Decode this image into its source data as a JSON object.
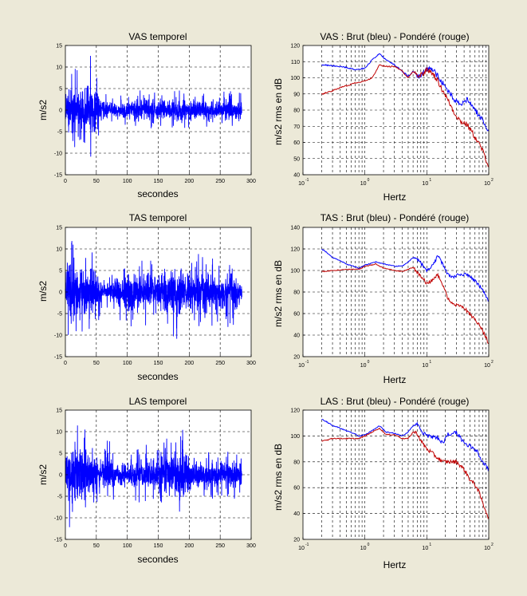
{
  "figure": {
    "background": "#ece9d8",
    "plot_background": "#ffffff",
    "grid_color": "#000000"
  },
  "colors": {
    "brut": "#0000ff",
    "pondere": "#c00000"
  },
  "chart_data": [
    {
      "id": "vas-temporel",
      "type": "line",
      "title": "VAS temporel",
      "xlabel": "secondes",
      "ylabel": "m/s2",
      "xlim": [
        0,
        300
      ],
      "ylim": [
        -15,
        15
      ],
      "xticks": [
        "0",
        "50",
        "100",
        "150",
        "200",
        "250",
        "300"
      ],
      "yticks": [
        "-15",
        "-10",
        "-5",
        "0",
        "5",
        "10",
        "15"
      ],
      "grid": true,
      "series": [
        {
          "color": "#0000ff",
          "x_range": [
            0,
            285
          ],
          "envelope": {
            "x": [
              0,
              10,
              20,
              30,
              40,
              50,
              60,
              80,
              100,
              120,
              150,
              180,
              200,
              220,
              250,
              270,
              285
            ],
            "amplitude": [
              4,
              10,
              11,
              9,
              14,
              8,
              4,
              3,
              4,
              5,
              4,
              5,
              4,
              4,
              4,
              5,
              4
            ]
          }
        }
      ]
    },
    {
      "id": "vas-spectre",
      "type": "line",
      "title": "VAS :  Brut (bleu) - Pondéré (rouge)",
      "xlabel": "Hertz",
      "ylabel": "m/s2 rms en dB",
      "xscale": "log",
      "xlim": [
        0.1,
        100
      ],
      "ylim": [
        40,
        120
      ],
      "xtick_bases": [
        "10",
        "10",
        "10",
        "10"
      ],
      "xtick_exponents": [
        "-1",
        "0",
        "1",
        "2"
      ],
      "yticks": [
        "40",
        "50",
        "60",
        "70",
        "80",
        "90",
        "100",
        "110",
        "120"
      ],
      "grid": true,
      "series": [
        {
          "name": "Brut",
          "color": "#0000ff",
          "x": [
            0.2,
            0.4,
            0.7,
            1.0,
            1.3,
            1.7,
            2.2,
            3.0,
            4.0,
            5.0,
            6.0,
            7.5,
            10,
            13,
            17,
            22,
            28,
            35,
            45,
            60,
            75,
            100
          ],
          "y": [
            108,
            107,
            105,
            106,
            111,
            115,
            111,
            108,
            104,
            101,
            104,
            100,
            106,
            104,
            98,
            92,
            86,
            83,
            87,
            80,
            75,
            67
          ]
        },
        {
          "name": "Pondéré",
          "color": "#c00000",
          "x": [
            0.2,
            0.4,
            0.7,
            1.0,
            1.3,
            1.7,
            2.2,
            3.0,
            4.0,
            5.0,
            6.0,
            7.5,
            10,
            13,
            17,
            22,
            28,
            35,
            45,
            60,
            75,
            100
          ],
          "y": [
            90,
            94,
            97,
            98,
            100,
            108,
            107,
            107,
            104,
            100,
            104,
            101,
            105,
            102,
            94,
            86,
            78,
            73,
            71,
            63,
            57,
            45
          ]
        }
      ]
    },
    {
      "id": "tas-temporel",
      "type": "line",
      "title": "TAS temporel",
      "xlabel": "secondes",
      "ylabel": "m/s2",
      "xlim": [
        0,
        300
      ],
      "ylim": [
        -15,
        15
      ],
      "xticks": [
        "0",
        "50",
        "100",
        "150",
        "200",
        "250",
        "300"
      ],
      "yticks": [
        "-15",
        "-10",
        "-5",
        "0",
        "5",
        "10",
        "15"
      ],
      "grid": true,
      "series": [
        {
          "color": "#0000ff",
          "x_range": [
            0,
            285
          ],
          "envelope": {
            "x": [
              0,
              10,
              20,
              30,
              40,
              50,
              60,
              80,
              90,
              100,
              120,
              150,
              180,
              200,
              220,
              250,
              270,
              285
            ],
            "amplitude": [
              8,
              14,
              9,
              10,
              12,
              9,
              3,
              5,
              7,
              9,
              8,
              8,
              11,
              9,
              9,
              7,
              9,
              5
            ]
          }
        }
      ]
    },
    {
      "id": "tas-spectre",
      "type": "line",
      "title": "TAS :  Brut (bleu) - Pondéré (rouge)",
      "xlabel": "Hertz",
      "ylabel": "m/s2 rms en dB",
      "xscale": "log",
      "xlim": [
        0.1,
        100
      ],
      "ylim": [
        20,
        140
      ],
      "xtick_bases": [
        "10",
        "10",
        "10",
        "10"
      ],
      "xtick_exponents": [
        "-1",
        "0",
        "1",
        "2"
      ],
      "yticks": [
        "20",
        "40",
        "60",
        "80",
        "100",
        "120",
        "140"
      ],
      "grid": true,
      "series": [
        {
          "name": "Brut",
          "color": "#0000ff",
          "x": [
            0.2,
            0.3,
            0.5,
            0.8,
            1.0,
            1.5,
            2.0,
            3.0,
            4.0,
            5.0,
            6.0,
            7.0,
            10,
            13,
            15,
            18,
            22,
            28,
            35,
            45,
            60,
            80,
            100
          ],
          "y": [
            120,
            112,
            106,
            102,
            105,
            108,
            106,
            104,
            104,
            108,
            112,
            110,
            100,
            106,
            114,
            106,
            96,
            94,
            97,
            96,
            90,
            82,
            70
          ]
        },
        {
          "name": "Pondéré",
          "color": "#c00000",
          "x": [
            0.2,
            0.3,
            0.5,
            0.8,
            1.0,
            1.5,
            2.0,
            3.0,
            4.0,
            5.0,
            6.0,
            7.0,
            10,
            13,
            15,
            18,
            22,
            28,
            35,
            45,
            60,
            80,
            100
          ],
          "y": [
            99,
            100,
            101,
            101,
            104,
            106,
            102,
            100,
            99,
            101,
            103,
            98,
            88,
            92,
            96,
            86,
            74,
            68,
            68,
            62,
            54,
            44,
            32
          ]
        }
      ]
    },
    {
      "id": "las-temporel",
      "type": "line",
      "title": "LAS temporel",
      "xlabel": "secondes",
      "ylabel": "m/s2",
      "xlim": [
        0,
        300
      ],
      "ylim": [
        -15,
        15
      ],
      "xticks": [
        "0",
        "50",
        "100",
        "150",
        "200",
        "250",
        "300"
      ],
      "yticks": [
        "-15",
        "-10",
        "-5",
        "0",
        "5",
        "10",
        "15"
      ],
      "grid": true,
      "series": [
        {
          "color": "#0000ff",
          "x_range": [
            0,
            285
          ],
          "envelope": {
            "x": [
              0,
              10,
              20,
              30,
              40,
              50,
              60,
              70,
              80,
              100,
              120,
              150,
              170,
              190,
              200,
              220,
              250,
              270,
              285
            ],
            "amplitude": [
              9,
              14,
              12,
              11,
              9,
              8,
              4,
              10,
              5,
              4,
              7,
              8,
              9,
              12,
              7,
              7,
              5,
              7,
              4
            ]
          }
        }
      ]
    },
    {
      "id": "las-spectre",
      "type": "line",
      "title": "LAS :  Brut (bleu) - Pondéré (rouge)",
      "xlabel": "Hertz",
      "ylabel": "m/s2 rms en dB",
      "xscale": "log",
      "xlim": [
        0.1,
        100
      ],
      "ylim": [
        20,
        120
      ],
      "xtick_bases": [
        "10",
        "10",
        "10",
        "10"
      ],
      "xtick_exponents": [
        "-1",
        "0",
        "1",
        "2"
      ],
      "yticks": [
        "20",
        "40",
        "60",
        "80",
        "100",
        "120"
      ],
      "grid": true,
      "series": [
        {
          "name": "Brut",
          "color": "#0000ff",
          "x": [
            0.2,
            0.3,
            0.5,
            0.8,
            1.0,
            1.3,
            1.7,
            2.2,
            3.0,
            4.0,
            5.0,
            6.0,
            7.0,
            8.0,
            10,
            14,
            18,
            22,
            30,
            40,
            50,
            65,
            80,
            100
          ],
          "y": [
            113,
            108,
            104,
            100,
            101,
            104,
            108,
            103,
            102,
            100,
            103,
            108,
            109,
            104,
            100,
            99,
            95,
            101,
            103,
            94,
            92,
            88,
            80,
            74
          ]
        },
        {
          "name": "Pondéré",
          "color": "#c00000",
          "x": [
            0.2,
            0.3,
            0.5,
            0.8,
            1.0,
            1.3,
            1.7,
            2.2,
            3.0,
            4.0,
            5.0,
            6.0,
            7.0,
            8.0,
            10,
            14,
            18,
            22,
            30,
            40,
            50,
            65,
            80,
            100
          ],
          "y": [
            96,
            98,
            98,
            98,
            100,
            103,
            106,
            101,
            101,
            98,
            98,
            103,
            102,
            96,
            90,
            84,
            80,
            80,
            80,
            74,
            66,
            60,
            48,
            36
          ]
        }
      ]
    }
  ]
}
